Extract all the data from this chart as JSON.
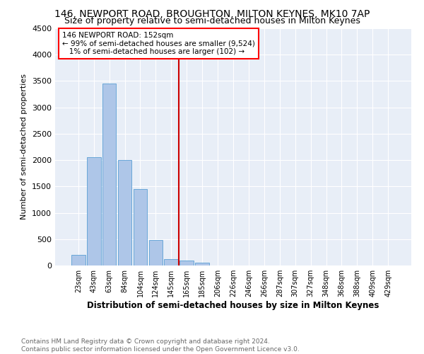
{
  "title": "146, NEWPORT ROAD, BROUGHTON, MILTON KEYNES, MK10 7AP",
  "subtitle": "Size of property relative to semi-detached houses in Milton Keynes",
  "xlabel": "Distribution of semi-detached houses by size in Milton Keynes",
  "ylabel": "Number of semi-detached properties",
  "footnote": "Contains HM Land Registry data © Crown copyright and database right 2024.\nContains public sector information licensed under the Open Government Licence v3.0.",
  "categories": [
    "23sqm",
    "43sqm",
    "63sqm",
    "84sqm",
    "104sqm",
    "124sqm",
    "145sqm",
    "165sqm",
    "185sqm",
    "206sqm",
    "226sqm",
    "246sqm",
    "266sqm",
    "287sqm",
    "307sqm",
    "327sqm",
    "348sqm",
    "368sqm",
    "388sqm",
    "409sqm",
    "429sqm"
  ],
  "bar_values": [
    200,
    2050,
    3450,
    2000,
    1450,
    480,
    120,
    100,
    55,
    0,
    0,
    0,
    0,
    0,
    0,
    0,
    0,
    0,
    0,
    0,
    0
  ],
  "bar_color": "#aec6e8",
  "bar_edge_color": "#5a9fd4",
  "vline_x": 6.5,
  "vline_color": "#cc0000",
  "annotation_box_text": "146 NEWPORT ROAD: 152sqm\n← 99% of semi-detached houses are smaller (9,524)\n   1% of semi-detached houses are larger (102) →",
  "annotation_box_color": "red",
  "ylim": [
    0,
    4500
  ],
  "yticks": [
    0,
    500,
    1000,
    1500,
    2000,
    2500,
    3000,
    3500,
    4000,
    4500
  ],
  "bg_color": "#e8eef7",
  "title_fontsize": 10,
  "subtitle_fontsize": 9,
  "footnote_color": "#666666"
}
